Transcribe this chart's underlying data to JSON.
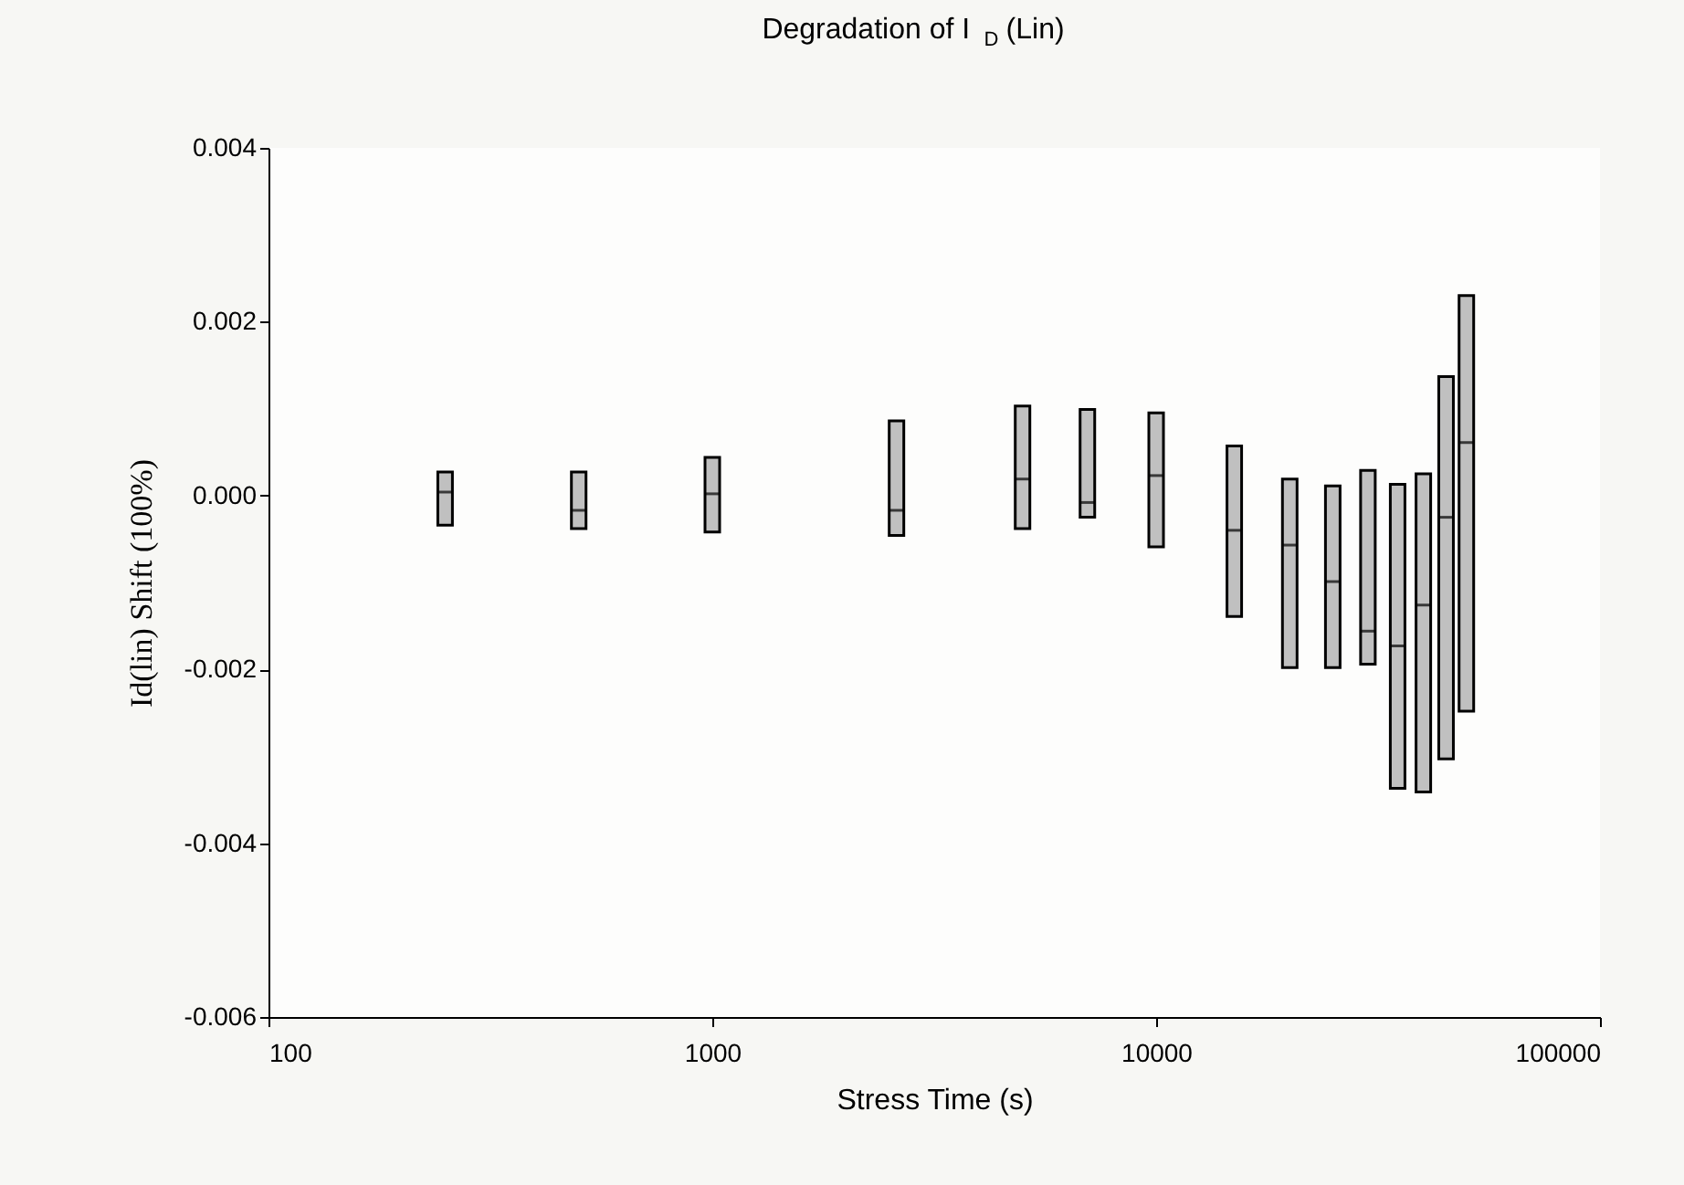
{
  "chart_data": {
    "type": "box",
    "title": "Degradation of I$_{D}$ (Lin)",
    "xlabel": "Stress Time (s)",
    "ylabel": "Id(lin) Shift (100%)",
    "x": [
      250,
      500,
      1000,
      2600,
      5000,
      7000,
      10000,
      15000,
      20000,
      25000,
      30000,
      35000,
      40000,
      45000,
      50000
    ],
    "color": "#c0c0c0",
    "boxes": [
      {
        "low": -0.00034,
        "q1": -0.00034,
        "median": 4e-05,
        "q3": 0.00027,
        "high": 0.00027
      },
      {
        "low": -0.00038,
        "q1": -0.00038,
        "median": -0.00017,
        "q3": 0.00027,
        "high": 0.00027
      },
      {
        "low": -0.00042,
        "q1": -0.00042,
        "median": 2e-05,
        "q3": 0.00044,
        "high": 0.00044
      },
      {
        "low": -0.00046,
        "q1": -0.00046,
        "median": -0.00017,
        "q3": 0.00086,
        "high": 0.00086
      },
      {
        "low": -0.00038,
        "q1": -0.00038,
        "median": 0.00019,
        "q3": 0.00103,
        "high": 0.00103
      },
      {
        "low": -0.00025,
        "q1": -0.00025,
        "median": -8e-05,
        "q3": 0.00099,
        "high": 0.00099
      },
      {
        "low": -0.00059,
        "q1": -0.00059,
        "median": 0.00023,
        "q3": 0.00095,
        "high": 0.00095
      },
      {
        "low": -0.00139,
        "q1": -0.00139,
        "median": -0.0004,
        "q3": 0.00057,
        "high": 0.00057
      },
      {
        "low": -0.00198,
        "q1": -0.00198,
        "median": -0.00057,
        "q3": 0.00019,
        "high": 0.00019
      },
      {
        "low": -0.00198,
        "q1": -0.00198,
        "median": -0.00099,
        "q3": 0.00011,
        "high": 0.00011
      },
      {
        "low": -0.00194,
        "q1": -0.00194,
        "median": -0.00156,
        "q3": 0.00029,
        "high": 0.00029
      },
      {
        "low": -0.00337,
        "q1": -0.00337,
        "median": -0.00173,
        "q3": 0.00013,
        "high": 0.00013
      },
      {
        "low": -0.00341,
        "q1": -0.00341,
        "median": -0.00126,
        "q3": 0.00025,
        "high": 0.00025
      },
      {
        "low": -0.00303,
        "q1": -0.00303,
        "median": -0.00025,
        "q3": 0.00137,
        "high": 0.00137
      },
      {
        "low": -0.00248,
        "q1": -0.00248,
        "median": 0.00061,
        "q3": 0.0023,
        "high": 0.0023
      }
    ],
    "log": "x",
    "xlim": [
      100,
      100000
    ],
    "xticks": [
      100,
      1000,
      10000,
      100000
    ],
    "ylim": [
      -0.006,
      0.004
    ],
    "yticks": [
      {
        "value": -0.006,
        "label": "-0.006"
      },
      {
        "value": -0.004,
        "label": "-0.004"
      },
      {
        "value": -0.002,
        "label": "-0.002"
      },
      {
        "value": 0,
        "label": "0.000"
      },
      {
        "value": 0.002,
        "label": "0.002"
      },
      {
        "value": 0.004,
        "label": "0.004"
      }
    ],
    "grid": false
  }
}
